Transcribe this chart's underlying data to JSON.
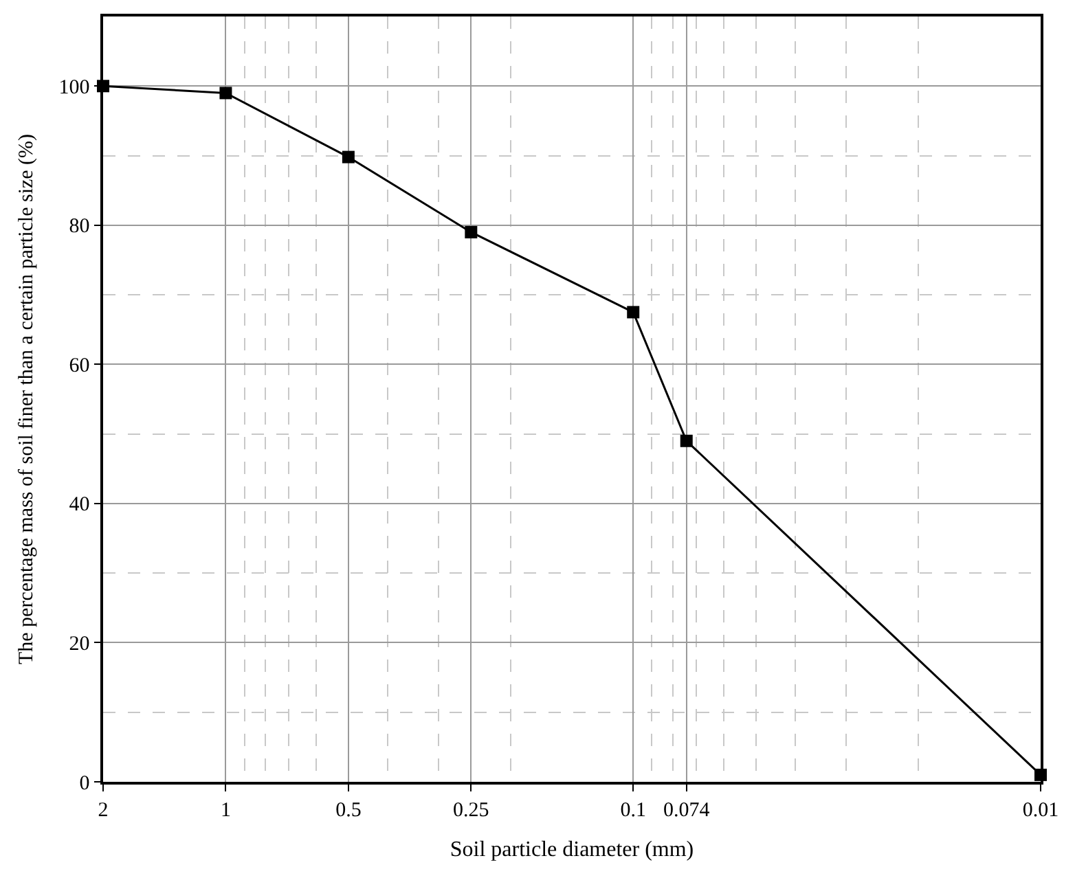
{
  "chart_data": {
    "type": "line",
    "xlabel": "Soil particle diameter (mm)",
    "ylabel": "The percentage mass of soil finer than a certain particle size (%)",
    "x": [
      2,
      1,
      0.5,
      0.25,
      0.1,
      0.074,
      0.01
    ],
    "series": [
      {
        "color": "#000000",
        "values": [
          100,
          99,
          89.8,
          79,
          67.5,
          49,
          1
        ]
      }
    ],
    "log": "x",
    "xlim": [
      2,
      0.01
    ],
    "xticks": [
      2,
      1,
      0.5,
      0.25,
      0.1,
      0.074,
      0.01
    ],
    "ylim": [
      0,
      110
    ],
    "yticks": [
      0,
      20,
      40,
      60,
      80,
      100
    ],
    "grid": true,
    "marker": "square",
    "line_style": "solid",
    "legend": false
  }
}
